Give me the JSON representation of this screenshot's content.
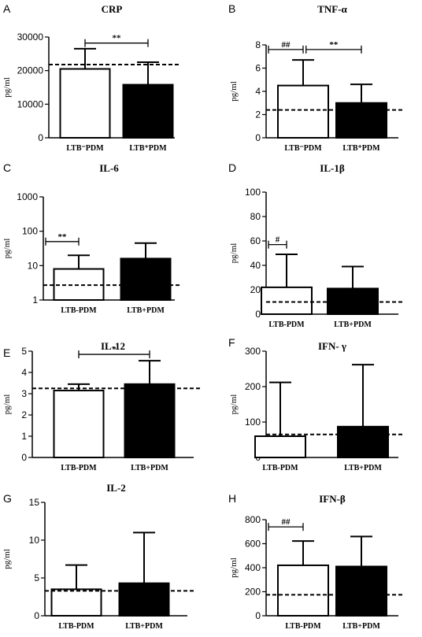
{
  "chart_data": [
    {
      "panel": "A",
      "title": "CRP",
      "type": "bar",
      "ylabel": "pg/ml",
      "ylim": [
        0,
        30000
      ],
      "yticks": [
        "0",
        "10000",
        "20000",
        "30000"
      ],
      "log": false,
      "categories": [
        "LTB-PDM",
        "LTB+PDM"
      ],
      "category_labels": [
        "LTB⁻PDM",
        "LTB⁺PDM"
      ],
      "values": [
        20500,
        15800
      ],
      "errors": [
        26500,
        22500
      ],
      "bar_fills": [
        "#ffffff",
        "#000000"
      ],
      "reference_line": 21800,
      "significance": [
        {
          "label": "**",
          "from": 0,
          "to": 1,
          "y": 28200
        }
      ]
    },
    {
      "panel": "B",
      "title": "TNF-α",
      "type": "bar",
      "ylabel": "pg/ml",
      "ylim": [
        0,
        8
      ],
      "yticks": [
        "0",
        "2",
        "4",
        "6",
        "8"
      ],
      "log": false,
      "categories": [
        "LTB-PDM",
        "LTB+PDM"
      ],
      "category_labels": [
        "LTB⁻PDM",
        "LTB⁺PDM"
      ],
      "values": [
        4.5,
        3.0
      ],
      "errors": [
        6.7,
        4.6
      ],
      "bar_fills": [
        "#ffffff",
        "#000000"
      ],
      "reference_line": 2.4,
      "significance": [
        {
          "label": "##",
          "from": -0.55,
          "to": 0,
          "y": 7.6
        },
        {
          "label": "**",
          "from": 0.05,
          "to": 1,
          "y": 7.6
        }
      ]
    },
    {
      "panel": "C",
      "title": "IL-6",
      "type": "bar",
      "ylabel": "pg/ml",
      "ylim": [
        1,
        1000
      ],
      "yticks": [
        "1",
        "10",
        "100",
        "1000"
      ],
      "log": true,
      "categories": [
        "LTB-PDM",
        "LTB+PDM"
      ],
      "category_labels": [
        "LTB-PDM",
        "LTB+PDM"
      ],
      "values": [
        8,
        16
      ],
      "errors": [
        20,
        45
      ],
      "bar_fills": [
        "#ffffff",
        "#000000"
      ],
      "reference_line": 2.7,
      "significance": [
        {
          "label": "**",
          "from": -0.55,
          "to": 0,
          "y": 50
        }
      ]
    },
    {
      "panel": "D",
      "title": "IL-1β",
      "type": "bar",
      "ylabel": "pg/ml",
      "ylim": [
        0,
        100
      ],
      "yticks": [
        "0",
        "20",
        "40",
        "60",
        "80",
        "100"
      ],
      "log": false,
      "categories": [
        "LTB-PDM",
        "LTB+PDM"
      ],
      "category_labels": [
        "LTB-PDM",
        "LTB+PDM"
      ],
      "values": [
        22,
        21
      ],
      "errors": [
        49,
        39
      ],
      "bar_fills": [
        "#ffffff",
        "#000000"
      ],
      "reference_line": 10,
      "significance": [
        {
          "label": "#",
          "from": -0.55,
          "to": 0,
          "y": 57
        }
      ]
    },
    {
      "panel": "E",
      "title": "IL-12",
      "type": "bar",
      "ylabel": "pg/ml",
      "ylim": [
        0,
        5
      ],
      "yticks": [
        "0",
        "1",
        "2",
        "3",
        "4",
        "5"
      ],
      "log": false,
      "categories": [
        "LTB-PDM",
        "LTB+PDM"
      ],
      "category_labels": [
        "LTB-PDM",
        "LTB+PDM"
      ],
      "values": [
        3.15,
        3.45
      ],
      "errors": [
        3.45,
        4.55
      ],
      "bar_fills": [
        "#ffffff",
        "#000000"
      ],
      "reference_line": 3.25,
      "significance": [
        {
          "label": "*",
          "from": 0,
          "to": 1,
          "y": 4.85
        }
      ]
    },
    {
      "panel": "F",
      "title": "IFN- γ",
      "type": "bar",
      "ylabel": "pg/ml",
      "ylim": [
        0,
        300
      ],
      "yticks": [
        "0",
        "100",
        "200",
        "300"
      ],
      "log": false,
      "categories": [
        "LTB-PDM",
        "LTB+PDM"
      ],
      "category_labels": [
        "LTB-PDM",
        "LTB+PDM"
      ],
      "values": [
        60,
        87
      ],
      "errors": [
        212,
        262
      ],
      "bar_fills": [
        "#ffffff",
        "#000000"
      ],
      "reference_line": 65,
      "significance": []
    },
    {
      "panel": "G",
      "title": "IL-2",
      "type": "bar",
      "ylabel": "pg/ml",
      "ylim": [
        0,
        15
      ],
      "yticks": [
        "0",
        "5",
        "10",
        "15"
      ],
      "log": false,
      "categories": [
        "LTB-PDM",
        "LTB+PDM"
      ],
      "category_labels": [
        "LTB-PDM",
        "LTB+PDM"
      ],
      "values": [
        3.5,
        4.3
      ],
      "errors": [
        6.7,
        11.0
      ],
      "bar_fills": [
        "#ffffff",
        "#000000"
      ],
      "reference_line": 3.3,
      "significance": []
    },
    {
      "panel": "H",
      "title": "IFN-β",
      "type": "bar",
      "ylabel": "pg/ml",
      "ylim": [
        0,
        800
      ],
      "yticks": [
        "0",
        "200",
        "400",
        "600",
        "800"
      ],
      "log": false,
      "categories": [
        "LTB-PDM",
        "LTB+PDM"
      ],
      "category_labels": [
        "LTB-PDM",
        "LTB+PDM"
      ],
      "values": [
        420,
        410
      ],
      "errors": [
        622,
        660
      ],
      "bar_fills": [
        "#ffffff",
        "#000000"
      ],
      "reference_line": 175,
      "significance": [
        {
          "label": "##",
          "from": -0.55,
          "to": 0,
          "y": 740
        }
      ]
    }
  ]
}
